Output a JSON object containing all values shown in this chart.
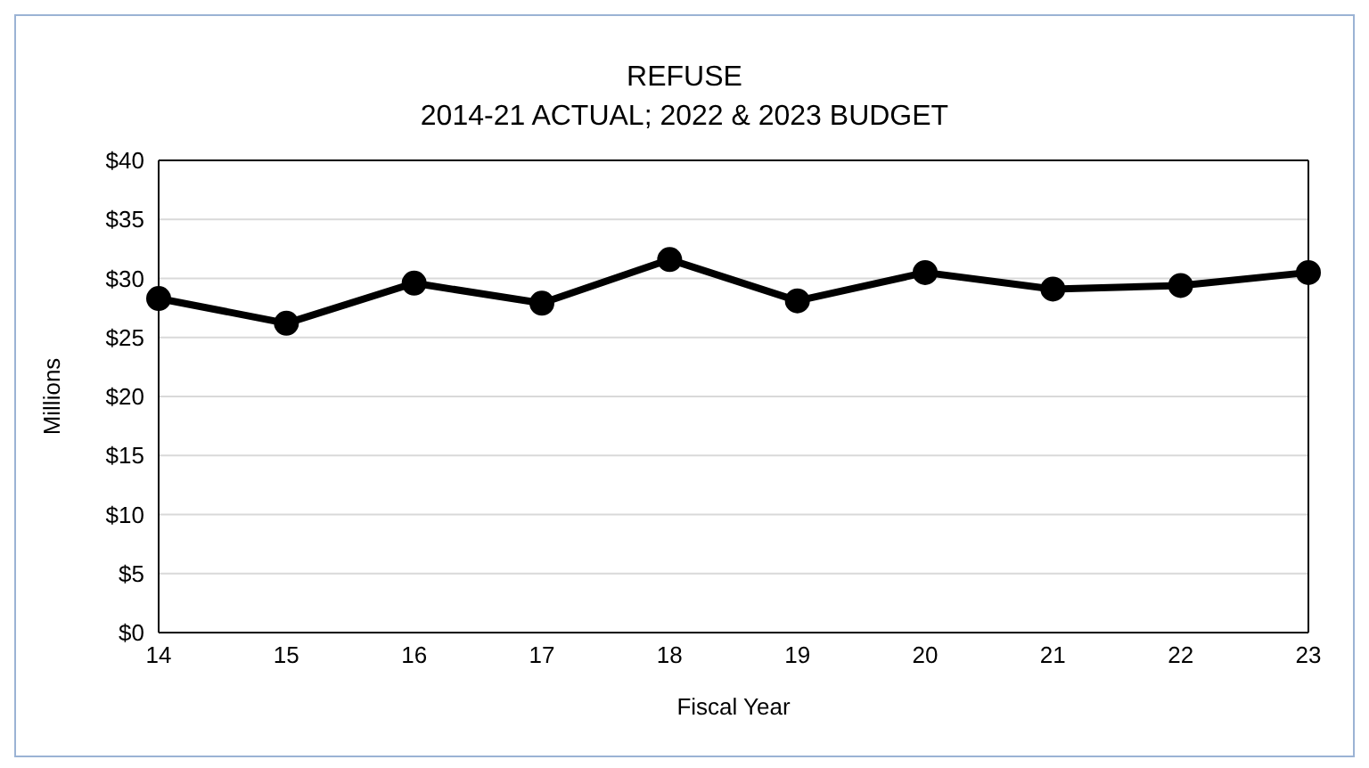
{
  "chart_data": {
    "type": "line",
    "title": "REFUSE",
    "subtitle": "2014-21 ACTUAL; 2022 & 2023 BUDGET",
    "xlabel": "Fiscal Year",
    "ylabel": "Millions",
    "categories": [
      "14",
      "15",
      "16",
      "17",
      "18",
      "19",
      "20",
      "21",
      "22",
      "23"
    ],
    "series": [
      {
        "color": "#000000",
        "values": [
          28.3,
          26.2,
          29.6,
          27.9,
          31.6,
          28.1,
          30.5,
          29.1,
          29.4,
          30.5
        ]
      }
    ],
    "ylim": [
      0,
      40
    ],
    "yticks": [
      {
        "value": 0,
        "label": "$0"
      },
      {
        "value": 5,
        "label": "$5"
      },
      {
        "value": 10,
        "label": "$10"
      },
      {
        "value": 15,
        "label": "$15"
      },
      {
        "value": 20,
        "label": "$20"
      },
      {
        "value": 25,
        "label": "$25"
      },
      {
        "value": 30,
        "label": "$30"
      },
      {
        "value": 35,
        "label": "$35"
      },
      {
        "value": 40,
        "label": "$40"
      }
    ],
    "grid": "y",
    "marker": "circle",
    "line_style": "solid",
    "legend": false
  }
}
